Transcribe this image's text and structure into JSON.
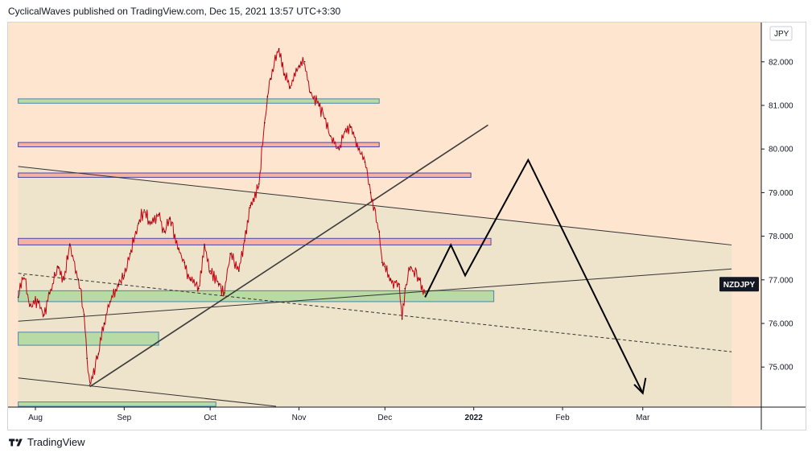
{
  "header": {
    "text": "CyclicalWaves published on TradingView.com, Dec 15, 2021 13:57 UTC+3:30"
  },
  "footer": {
    "brand": "TradingView"
  },
  "chart_data": {
    "type": "line",
    "symbol": "NZDJPY",
    "currency": "JPY",
    "x_ticks": [
      {
        "label": "Aug",
        "bold": false
      },
      {
        "label": "Sep",
        "bold": false
      },
      {
        "label": "Oct",
        "bold": false
      },
      {
        "label": "Nov",
        "bold": false
      },
      {
        "label": "Dec",
        "bold": false
      },
      {
        "label": "2022",
        "bold": true
      },
      {
        "label": "Feb",
        "bold": false
      },
      {
        "label": "Mar",
        "bold": false
      }
    ],
    "y_ticks": [
      75.0,
      76.0,
      77.0,
      78.0,
      79.0,
      80.0,
      81.0,
      82.0
    ],
    "y_tick_labels": [
      "75.000",
      "76.000",
      "77.000",
      "78.000",
      "79.000",
      "80.000",
      "81.000",
      "82.000"
    ],
    "ylim": [
      74.1,
      83.2
    ],
    "last_price": 76.7,
    "colors": {
      "background_upper": "#fde5cf",
      "background_lower": "#eee4cc",
      "price_line": "#c4000f",
      "support_zone": "#b8dba6",
      "resistance_zone": "#f3b2a5",
      "zone_border_green": "#4a86a8",
      "zone_border_red": "#4a4aa8",
      "projection": "#000000"
    },
    "price_series": [
      [
        "2021-07-26",
        76.6
      ],
      [
        "2021-07-28",
        77.1
      ],
      [
        "2021-07-30",
        76.4
      ],
      [
        "2021-08-02",
        76.5
      ],
      [
        "2021-08-04",
        76.2
      ],
      [
        "2021-08-06",
        76.7
      ],
      [
        "2021-08-09",
        77.3
      ],
      [
        "2021-08-11",
        77.0
      ],
      [
        "2021-08-13",
        77.8
      ],
      [
        "2021-08-16",
        77.0
      ],
      [
        "2021-08-18",
        76.2
      ],
      [
        "2021-08-19",
        75.2
      ],
      [
        "2021-08-20",
        74.6
      ],
      [
        "2021-08-23",
        75.3
      ],
      [
        "2021-08-25",
        76.0
      ],
      [
        "2021-08-27",
        76.5
      ],
      [
        "2021-08-30",
        76.9
      ],
      [
        "2021-09-01",
        77.1
      ],
      [
        "2021-09-03",
        77.6
      ],
      [
        "2021-09-06",
        78.3
      ],
      [
        "2021-09-08",
        78.6
      ],
      [
        "2021-09-10",
        78.3
      ],
      [
        "2021-09-13",
        78.5
      ],
      [
        "2021-09-15",
        78.1
      ],
      [
        "2021-09-17",
        78.4
      ],
      [
        "2021-09-20",
        77.7
      ],
      [
        "2021-09-22",
        77.4
      ],
      [
        "2021-09-24",
        77.0
      ],
      [
        "2021-09-27",
        76.8
      ],
      [
        "2021-09-29",
        77.8
      ],
      [
        "2021-10-01",
        77.2
      ],
      [
        "2021-10-04",
        76.9
      ],
      [
        "2021-10-06",
        76.7
      ],
      [
        "2021-10-08",
        77.6
      ],
      [
        "2021-10-11",
        77.2
      ],
      [
        "2021-10-13",
        77.9
      ],
      [
        "2021-10-15",
        78.7
      ],
      [
        "2021-10-18",
        79.2
      ],
      [
        "2021-10-20",
        80.6
      ],
      [
        "2021-10-21",
        81.2
      ],
      [
        "2021-10-22",
        81.6
      ],
      [
        "2021-10-25",
        82.3
      ],
      [
        "2021-10-27",
        81.7
      ],
      [
        "2021-10-29",
        81.4
      ],
      [
        "2021-11-01",
        81.9
      ],
      [
        "2021-11-03",
        82.0
      ],
      [
        "2021-11-05",
        81.3
      ],
      [
        "2021-11-08",
        81.0
      ],
      [
        "2021-11-10",
        80.7
      ],
      [
        "2021-11-12",
        80.3
      ],
      [
        "2021-11-15",
        80.0
      ],
      [
        "2021-11-17",
        80.4
      ],
      [
        "2021-11-19",
        80.5
      ],
      [
        "2021-11-22",
        80.0
      ],
      [
        "2021-11-24",
        79.7
      ],
      [
        "2021-11-26",
        79.0
      ],
      [
        "2021-11-29",
        78.1
      ],
      [
        "2021-11-30",
        77.4
      ],
      [
        "2021-12-01",
        77.3
      ],
      [
        "2021-12-03",
        77.0
      ],
      [
        "2021-12-06",
        76.9
      ],
      [
        "2021-12-07",
        76.1
      ],
      [
        "2021-12-08",
        76.8
      ],
      [
        "2021-12-10",
        77.3
      ],
      [
        "2021-12-13",
        77.0
      ],
      [
        "2021-12-15",
        76.7
      ]
    ],
    "zones": [
      {
        "kind": "support",
        "start": "2021-07-26",
        "end": "2021-11-29",
        "low": 81.05,
        "high": 81.15
      },
      {
        "kind": "resistance",
        "start": "2021-07-26",
        "end": "2021-11-29",
        "low": 80.05,
        "high": 80.15
      },
      {
        "kind": "resistance",
        "start": "2021-07-26",
        "end": "2021-12-31",
        "low": 79.35,
        "high": 79.45
      },
      {
        "kind": "resistance",
        "start": "2021-07-26",
        "end": "2022-01-07",
        "low": 77.8,
        "high": 77.95
      },
      {
        "kind": "support",
        "start": "2021-07-26",
        "end": "2022-01-08",
        "low": 76.5,
        "high": 76.75
      },
      {
        "kind": "support",
        "start": "2021-07-26",
        "end": "2021-09-13",
        "low": 75.5,
        "high": 75.8
      },
      {
        "kind": "support",
        "start": "2021-07-26",
        "end": "2021-10-03",
        "low": 74.1,
        "high": 74.2
      }
    ],
    "trendlines": [
      {
        "style": "solid",
        "from": [
          "2021-07-26",
          76.05
        ],
        "to": [
          "2022-04-01",
          77.25
        ],
        "note": "lower channel"
      },
      {
        "style": "solid",
        "from": [
          "2021-07-26",
          79.6
        ],
        "to": [
          "2022-04-01",
          77.8
        ],
        "note": "upper channel"
      },
      {
        "style": "solid",
        "from": [
          "2021-08-20",
          74.55
        ],
        "to": [
          "2022-01-06",
          80.55
        ],
        "note": "rising"
      },
      {
        "style": "dashed",
        "from": [
          "2021-07-26",
          77.15
        ],
        "to": [
          "2022-04-01",
          75.35
        ],
        "note": "mid"
      },
      {
        "style": "solid",
        "from": [
          "2021-07-26",
          74.75
        ],
        "to": [
          "2021-10-24",
          74.1
        ],
        "note": "bottom"
      }
    ],
    "projection": [
      [
        "2021-12-15",
        76.6
      ],
      [
        "2021-12-24",
        77.8
      ],
      [
        "2021-12-29",
        77.1
      ],
      [
        "2022-01-20",
        79.75
      ],
      [
        "2022-03-01",
        74.4
      ]
    ],
    "projection_arrowhead": [
      [
        "2022-02-26",
        74.6
      ],
      [
        "2022-03-01",
        74.4
      ],
      [
        "2022-03-02",
        74.75
      ]
    ]
  }
}
